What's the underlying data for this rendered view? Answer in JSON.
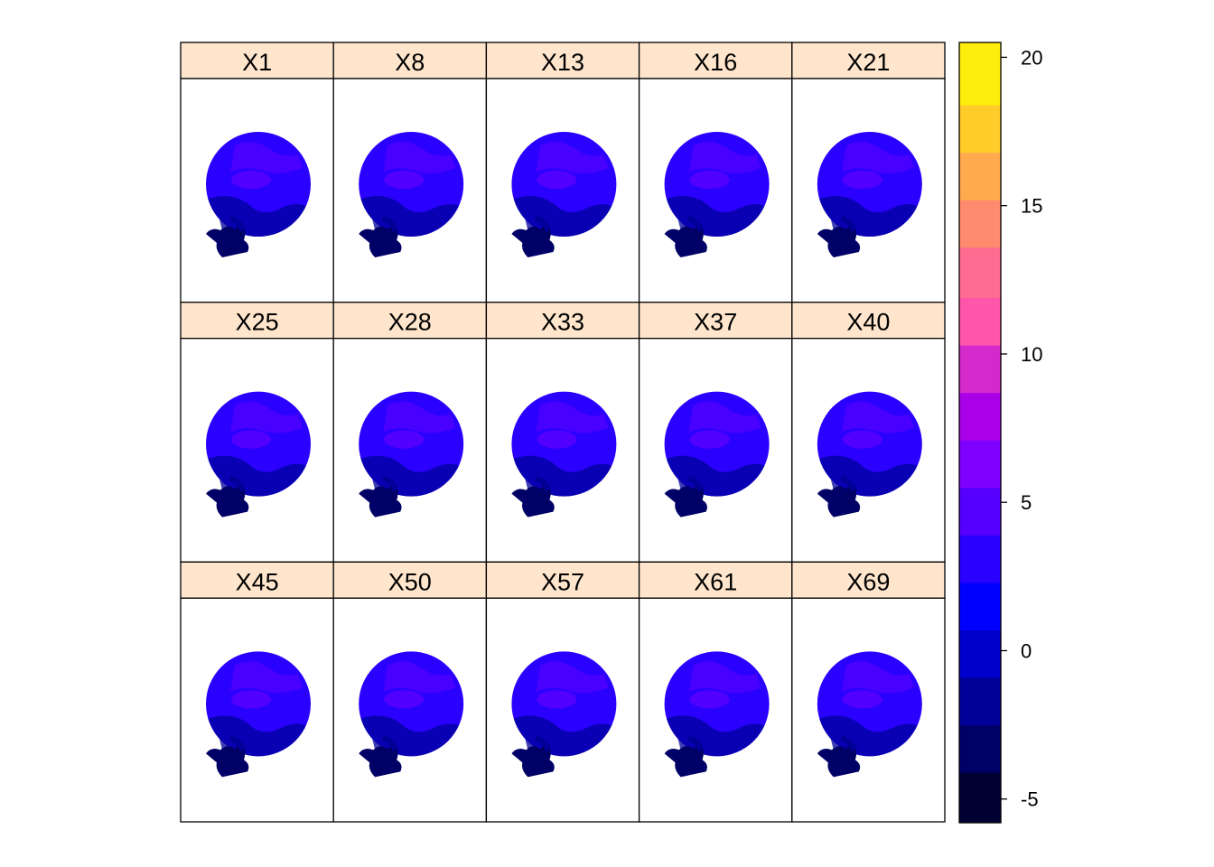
{
  "chart_data": {
    "type": "heatmap",
    "layout": {
      "rows": 3,
      "columns": 5
    },
    "panels": [
      "X1",
      "X8",
      "X13",
      "X16",
      "X21",
      "X25",
      "X28",
      "X33",
      "X37",
      "X40",
      "X45",
      "X50",
      "X57",
      "X61",
      "X69"
    ],
    "colorbar": {
      "range": [
        -5.8,
        20.5
      ],
      "ticks": [
        -5,
        0,
        5,
        10,
        15,
        20
      ],
      "tick_labels": [
        "-5",
        "0",
        "5",
        "10",
        "15",
        "20"
      ],
      "breaks": [
        -5.8,
        -4.1,
        -2.5,
        -0.9,
        0.7,
        2.3,
        3.9,
        5.5,
        7.1,
        8.7,
        10.3,
        11.9,
        13.6,
        15.2,
        16.8,
        18.4,
        20.5
      ],
      "colors": [
        "#000033",
        "#000066",
        "#000099",
        "#0000CC",
        "#0000FF",
        "#2A00FF",
        "#5500FF",
        "#8000FF",
        "#AA00E8",
        "#D42ACC",
        "#FF55AA",
        "#FF6C91",
        "#FF8B6F",
        "#FFAA4D",
        "#FFCC29",
        "#FFEE0D",
        "#FFFF60"
      ]
    },
    "colors": {
      "strip_background": "#FFE5CC",
      "map_base": "#2A00FF",
      "map_dark": "#000099",
      "map_warm": "#8000FF"
    },
    "grid": false
  }
}
